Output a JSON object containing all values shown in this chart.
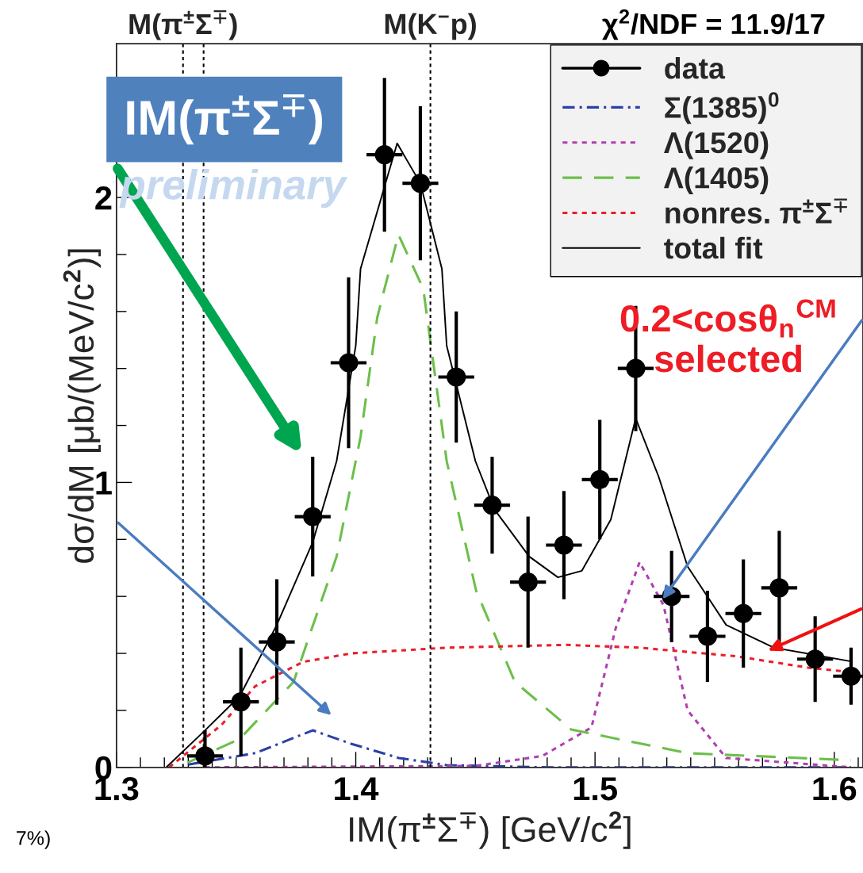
{
  "chart_data": {
    "type": "line",
    "xlabel": "IM(π$^{±}$Σ$^{∓}$) [GeV/c$^{2}$]",
    "ylabel": "dσ/dM [μb/(MeV/c$^{2}$)]",
    "xlim": [
      1.3,
      1.612
    ],
    "ylim": [
      0,
      2.54
    ],
    "xticks": [
      1.3,
      1.4,
      1.5,
      1.6
    ],
    "yticks": [
      0,
      1,
      2
    ],
    "grid": false,
    "legend": "top right",
    "series": [
      {
        "name": "data",
        "type": "scatter",
        "color": "#000000",
        "marker": "circle",
        "x": [
          1.337,
          1.352,
          1.367,
          1.382,
          1.397,
          1.412,
          1.427,
          1.442,
          1.457,
          1.472,
          1.487,
          1.502,
          1.517,
          1.532,
          1.547,
          1.562,
          1.577,
          1.592,
          1.607
        ],
        "values": [
          0.04,
          0.23,
          0.44,
          0.88,
          1.42,
          2.15,
          2.05,
          1.37,
          0.92,
          0.65,
          0.78,
          1.01,
          1.4,
          0.6,
          0.46,
          0.54,
          0.63,
          0.38,
          0.32
        ],
        "errors": [
          0.09,
          0.19,
          0.22,
          0.21,
          0.3,
          0.27,
          0.27,
          0.23,
          0.17,
          0.23,
          0.19,
          0.21,
          0.22,
          0.16,
          0.16,
          0.19,
          0.2,
          0.15,
          0.1
        ],
        "xerrors": [
          0.0075,
          0.0075,
          0.0075,
          0.0075,
          0.0075,
          0.0075,
          0.0075,
          0.0075,
          0.0075,
          0.0075,
          0.0075,
          0.0075,
          0.0075,
          0.0075,
          0.0075,
          0.0075,
          0.0075,
          0.0075,
          [
            1.5995,
            1.612
          ]
        ]
      },
      {
        "name": "Σ(1385)$^{0}$",
        "line_style": "dashdot",
        "color": "#2b3fa8",
        "x": [
          1.33,
          1.358,
          1.382,
          1.398,
          1.418,
          1.438,
          1.48,
          1.607
        ],
        "values": [
          0.01,
          0.05,
          0.13,
          0.083,
          0.033,
          0.008,
          0.0,
          0.0
        ]
      },
      {
        "name": "Λ(1520)",
        "line_style": "dotted",
        "color": "#b040b0",
        "x": [
          1.337,
          1.45,
          1.478,
          1.4985,
          1.5087,
          1.5186,
          1.5286,
          1.5387,
          1.5548,
          1.607
        ],
        "values": [
          0.0,
          0.005,
          0.04,
          0.14,
          0.49,
          0.72,
          0.57,
          0.2,
          0.033,
          0.0
        ]
      },
      {
        "name": "Λ(1405)",
        "line_style": "dashed",
        "color": "#6cbf4a",
        "x": [
          1.3298,
          1.3515,
          1.374,
          1.392,
          1.402,
          1.409,
          1.4178,
          1.4282,
          1.438,
          1.4503,
          1.4665,
          1.49,
          1.5387,
          1.607
        ],
        "values": [
          0.017,
          0.1,
          0.3,
          0.74,
          1.16,
          1.58,
          1.87,
          1.68,
          1.075,
          0.62,
          0.3,
          0.133,
          0.05,
          0.025
        ]
      },
      {
        "name": "nonres. π$^{±}$Σ$^{∓}$",
        "line_style": "dotted",
        "color": "#e8202a",
        "x": [
          1.322,
          1.344,
          1.358,
          1.378,
          1.398,
          1.438,
          1.488,
          1.5186,
          1.559,
          1.589,
          1.612
        ],
        "values": [
          0.0,
          0.15,
          0.285,
          0.37,
          0.4,
          0.42,
          0.43,
          0.42,
          0.39,
          0.35,
          0.33
        ]
      },
      {
        "name": "total fit",
        "line_style": "solid",
        "color": "#000000",
        "x": [
          1.3208,
          1.3364,
          1.3515,
          1.367,
          1.382,
          1.392,
          1.4,
          1.402,
          1.4173,
          1.427,
          1.436,
          1.438,
          1.45,
          1.458,
          1.4725,
          1.4845,
          1.4945,
          1.5066,
          1.517,
          1.5266,
          1.5387,
          1.5548,
          1.5748,
          1.607
        ],
        "values": [
          0.0,
          0.125,
          0.25,
          0.5,
          0.79,
          1.075,
          1.48,
          1.75,
          2.19,
          2.05,
          1.75,
          1.48,
          1.075,
          0.905,
          0.74,
          0.667,
          0.69,
          0.87,
          1.225,
          1.02,
          0.705,
          0.5,
          0.42,
          0.372
        ]
      }
    ],
    "ref_lines": [
      {
        "axis": "x",
        "value": 1.3278,
        "label": "M(π$^{±}$Σ$^{∓}$)",
        "line_style": "dotted",
        "color": "#000000"
      },
      {
        "axis": "x",
        "value": 1.3364,
        "line_style": "dotted",
        "color": "#000000"
      },
      {
        "axis": "x",
        "value": 1.4312,
        "label": "M(K$^{−}$p)",
        "line_style": "dotted",
        "color": "#000000"
      }
    ],
    "annotations": [
      "χ$^{2}$/NDF = 11.9/17",
      "IM(π$^{±}$Σ$^{∓}$)",
      "preliminary",
      "0.2<cosθ$_{n}$$^{CM}$\nselected",
      "7%)"
    ]
  }
}
